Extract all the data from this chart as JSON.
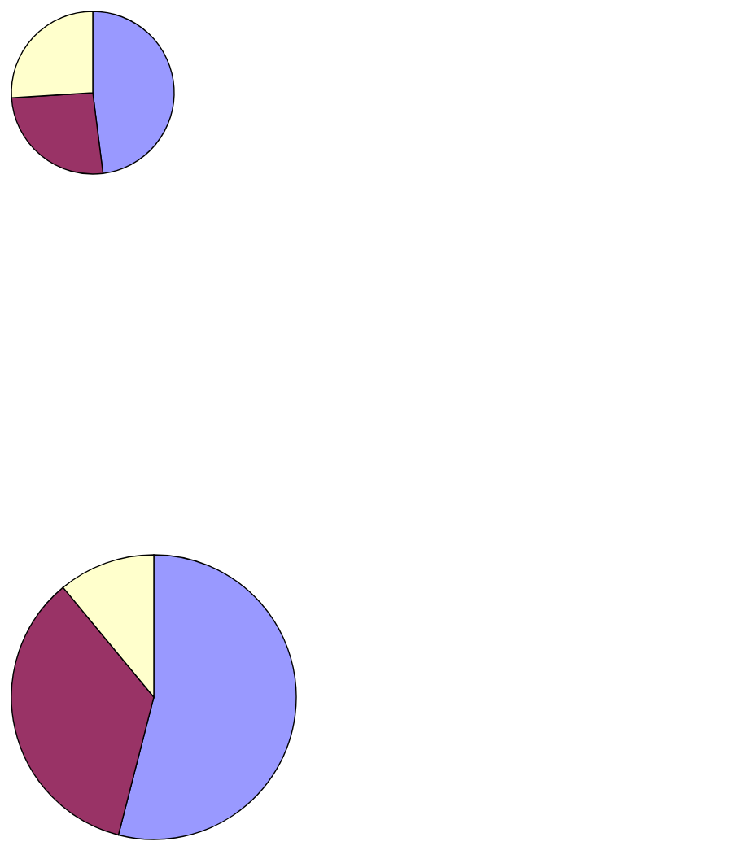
{
  "chart_data": [
    {
      "type": "pie",
      "categories": [
        null,
        null,
        null
      ],
      "values": [
        48,
        26,
        26
      ],
      "colors": [
        "#9999ff",
        "#993366",
        "#ffffcc"
      ]
    },
    {
      "type": "pie",
      "categories": [
        null,
        null,
        null
      ],
      "values": [
        54,
        35,
        11
      ],
      "colors": [
        "#9999ff",
        "#993366",
        "#ffffcc"
      ]
    }
  ]
}
